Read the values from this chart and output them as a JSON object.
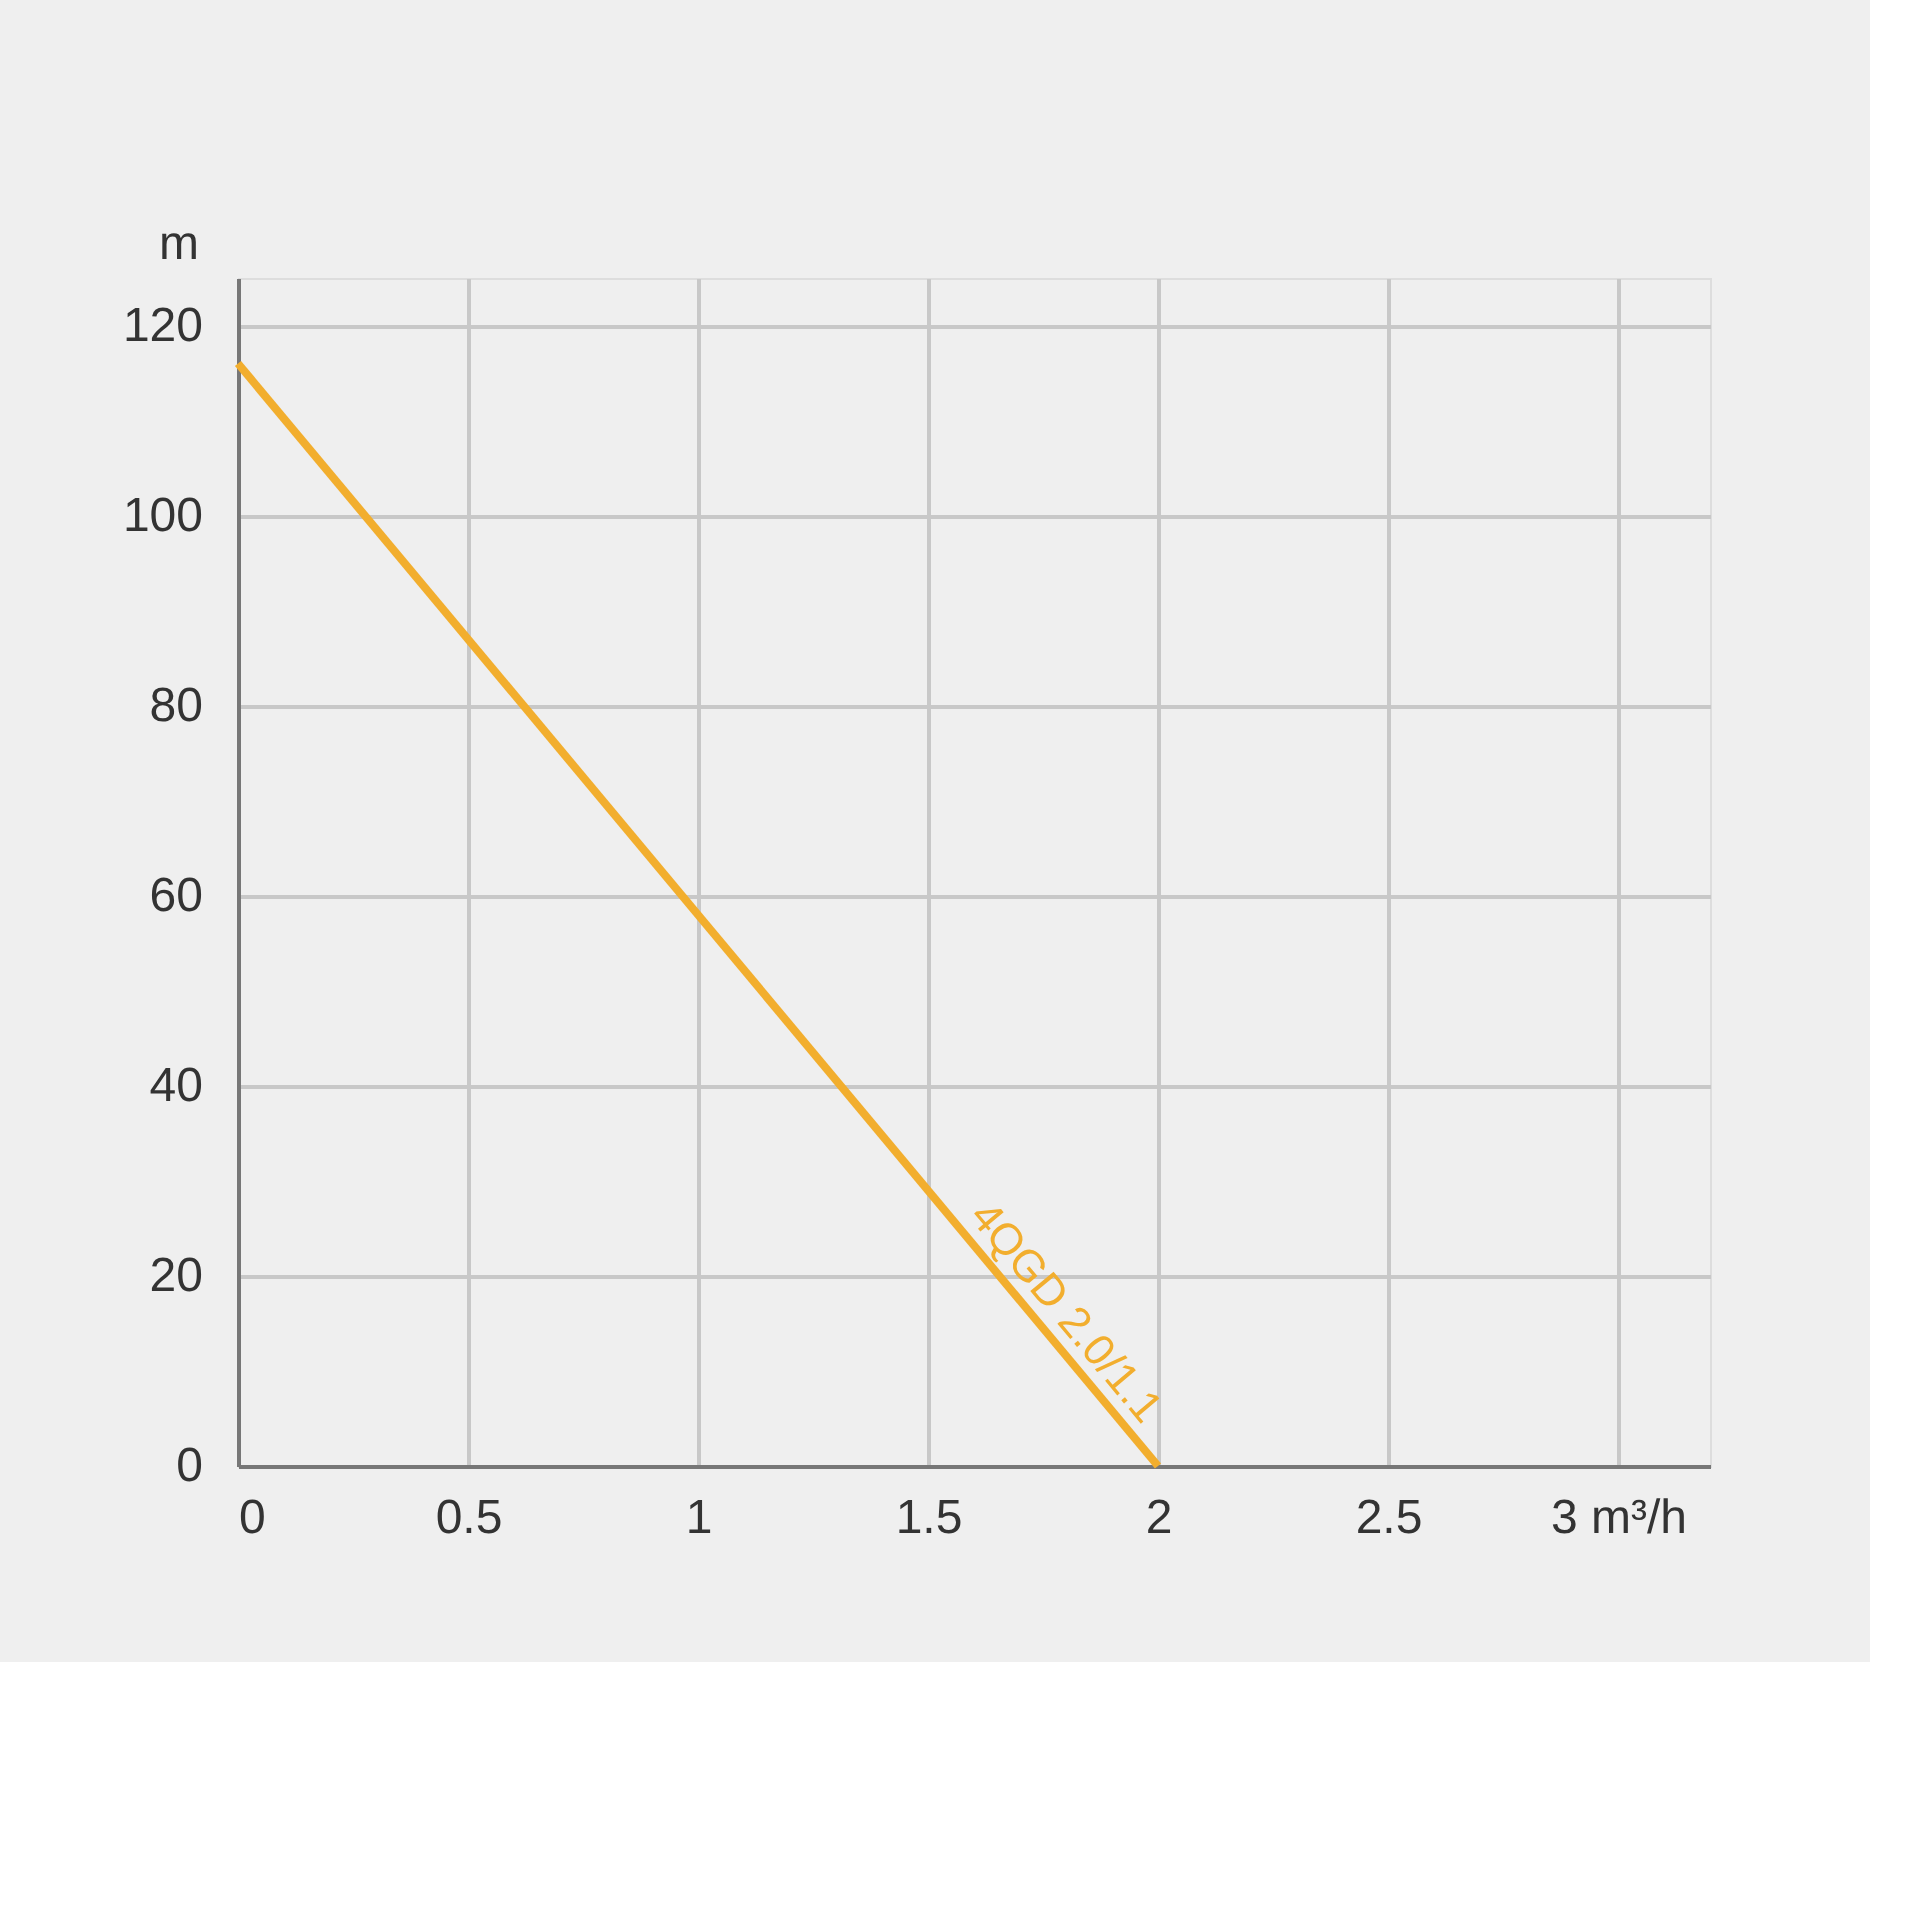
{
  "chart_data": {
    "type": "line",
    "ylabel": "m",
    "x": [
      0,
      1,
      2
    ],
    "series": [
      {
        "name": "4QGD 2.0/1.1",
        "color": "#f2ae2e",
        "values": [
          116,
          58,
          0
        ]
      }
    ],
    "xlim": [
      0,
      3.2
    ],
    "ylim": [
      0,
      125
    ],
    "xticks": [
      0,
      0.5,
      1,
      1.5,
      2,
      2.5,
      {
        "value": 3,
        "label": "3 m³/h"
      }
    ],
    "yticks": [
      0,
      20,
      40,
      60,
      80,
      100,
      120
    ],
    "grid": true,
    "marker": "none",
    "line_style": "solid"
  }
}
